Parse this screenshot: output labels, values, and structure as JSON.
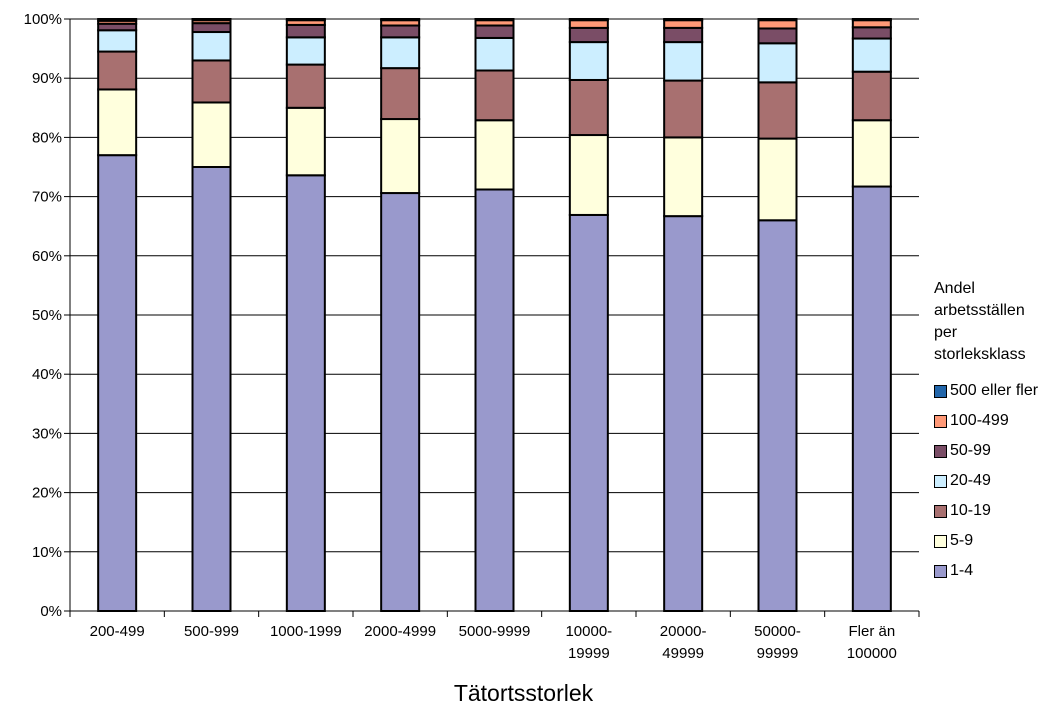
{
  "chart_data": {
    "type": "bar",
    "stacked": true,
    "stack_mode": "percent",
    "title": "",
    "xlabel": "Tätortsstorlek",
    "ylabel": "",
    "ylim": [
      0,
      100
    ],
    "y_ticks": [
      "0%",
      "10%",
      "20%",
      "30%",
      "40%",
      "50%",
      "60%",
      "70%",
      "80%",
      "90%",
      "100%"
    ],
    "grid": true,
    "legend": {
      "title_lines": [
        "Andel",
        "arbetsställen",
        "per",
        "storleksklass"
      ],
      "placement": "right"
    },
    "categories": [
      [
        "200-499"
      ],
      [
        "500-999"
      ],
      [
        "1000-1999"
      ],
      [
        "2000-4999"
      ],
      [
        "5000-9999"
      ],
      [
        "10000-",
        "19999"
      ],
      [
        "20000-",
        "49999"
      ],
      [
        "50000-",
        "99999"
      ],
      [
        "Fler än",
        "100000"
      ]
    ],
    "series": [
      {
        "name": "1-4",
        "color": "#9999cc",
        "values": [
          77.0,
          75.0,
          73.6,
          70.6,
          71.2,
          66.9,
          66.7,
          66.0,
          71.7
        ]
      },
      {
        "name": "5-9",
        "color": "#ffffdd",
        "values": [
          11.1,
          10.9,
          11.4,
          12.5,
          11.7,
          13.5,
          13.3,
          13.8,
          11.2
        ]
      },
      {
        "name": "10-19",
        "color": "#a87070",
        "values": [
          6.4,
          7.1,
          7.3,
          8.6,
          8.4,
          9.3,
          9.6,
          9.5,
          8.2
        ]
      },
      {
        "name": "20-49",
        "color": "#cceeff",
        "values": [
          3.6,
          4.8,
          4.6,
          5.2,
          5.5,
          6.4,
          6.5,
          6.6,
          5.6
        ]
      },
      {
        "name": "50-99",
        "color": "#7a4d66",
        "values": [
          1.1,
          1.5,
          2.1,
          2.0,
          2.1,
          2.4,
          2.4,
          2.5,
          1.9
        ]
      },
      {
        "name": "100-499",
        "color": "#ff9977",
        "values": [
          0.5,
          0.5,
          0.8,
          0.9,
          0.9,
          1.3,
          1.3,
          1.4,
          1.2
        ]
      },
      {
        "name": "500 eller fler",
        "color": "#2266aa",
        "values": [
          0.3,
          0.2,
          0.2,
          0.2,
          0.2,
          0.2,
          0.2,
          0.2,
          0.2
        ]
      }
    ]
  }
}
